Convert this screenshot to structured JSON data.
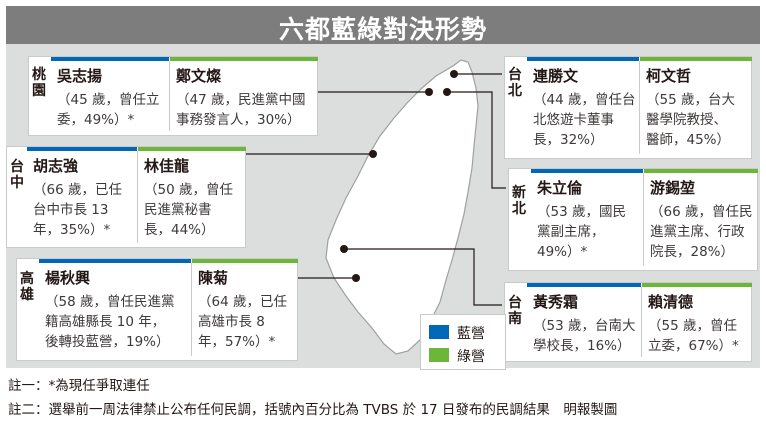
{
  "title": "六都藍綠對決形勢",
  "regions": [
    {
      "id": "taoyuan",
      "label": "桃園",
      "candidates": [
        {
          "party": "blue",
          "name": "吳志揚",
          "desc_lines": [
            "（45 歲，曾任立",
            "委，49%）*"
          ]
        },
        {
          "party": "green",
          "name": "鄭文燦",
          "desc_lines": [
            "（47 歲，民進黨中國",
            "事務發言人，30%）"
          ]
        }
      ]
    },
    {
      "id": "taipei",
      "label": "台北",
      "candidates": [
        {
          "party": "blue",
          "name": "連勝文",
          "desc_lines": [
            "（44 歲，曾任台",
            "北悠遊卡董事",
            "長，32%）"
          ]
        },
        {
          "party": "green",
          "name": "柯文哲",
          "desc_lines": [
            "（55 歲，台大",
            "醫學院教授、",
            "醫師，45%）"
          ]
        }
      ]
    },
    {
      "id": "taichung",
      "label": "台中",
      "candidates": [
        {
          "party": "blue",
          "name": "胡志強",
          "desc_lines": [
            "（66 歲，已任",
            "台中市長 13",
            "年，35%）*"
          ]
        },
        {
          "party": "green",
          "name": "林佳龍",
          "desc_lines": [
            "（50 歲，曾任",
            "民進黨秘書",
            "長，44%）"
          ]
        }
      ]
    },
    {
      "id": "newtaipei",
      "label": "新北",
      "candidates": [
        {
          "party": "blue",
          "name": "朱立倫",
          "desc_lines": [
            "（53 歲，國民",
            "黨副主席，",
            "49%）*"
          ]
        },
        {
          "party": "green",
          "name": "游錫堃",
          "desc_lines": [
            "（66 歲，曾任民",
            "進黨主席、行政",
            "院長，28%）"
          ]
        }
      ]
    },
    {
      "id": "kaohsiung",
      "label": "高雄",
      "candidates": [
        {
          "party": "blue",
          "name": "楊秋興",
          "desc_lines": [
            "（58 歲，曾任民進黨",
            "籍高雄縣長 10 年，",
            "後轉投藍營，19%）"
          ]
        },
        {
          "party": "green",
          "name": "陳菊",
          "desc_lines": [
            "（64 歲，已任",
            "高雄市長 8",
            "年，57%）*"
          ]
        }
      ]
    },
    {
      "id": "tainan",
      "label": "台南",
      "candidates": [
        {
          "party": "blue",
          "name": "黃秀霜",
          "desc_lines": [
            "（53 歲，台南大",
            "學校長，16%）"
          ]
        },
        {
          "party": "green",
          "name": "賴清德",
          "desc_lines": [
            "（55 歲，曾任",
            "立委，67%）*"
          ]
        }
      ]
    }
  ],
  "legend": [
    {
      "label": "藍營",
      "color": "#0068b7"
    },
    {
      "label": "綠營",
      "color": "#6db63a"
    }
  ],
  "notes": [
    "註一：*為現任爭取連任",
    "註二：選舉前一周法律禁止公布任何民調，括號內百分比為 TVBS 於 17 日發布的民調結果　明報製圖"
  ],
  "colors": {
    "blue": "#0068b7",
    "green": "#6db63a",
    "panel": "#dcdddd",
    "title_bar": "#7d7d7d"
  }
}
